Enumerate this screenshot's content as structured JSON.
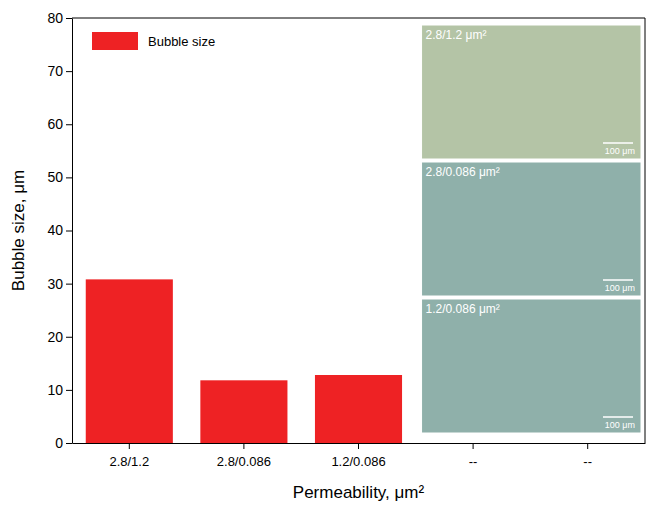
{
  "chart_data": {
    "type": "bar",
    "categories": [
      "2.8/1.2",
      "2.8/0.086",
      "1.2/0.086",
      "--",
      "--"
    ],
    "series": [
      {
        "name": "Bubble size",
        "color": "#ee2224",
        "values": [
          30.8,
          11.8,
          12.8,
          null,
          null
        ]
      }
    ],
    "x_label": "Permeability, μm²",
    "y_label": "Bubble size, μm",
    "ylim": [
      0,
      80
    ],
    "yticks": [
      0,
      10,
      20,
      30,
      40,
      50,
      60,
      70,
      80
    ],
    "legend": "upper left",
    "grid": false,
    "insets": [
      {
        "label": "2.8/1.2 μm²",
        "scale_bar": "100 μm"
      },
      {
        "label": "2.8/0.086 μm²",
        "scale_bar": "100 μm"
      },
      {
        "label": "1.2/0.086 μm²",
        "scale_bar": "100 μm"
      }
    ]
  }
}
